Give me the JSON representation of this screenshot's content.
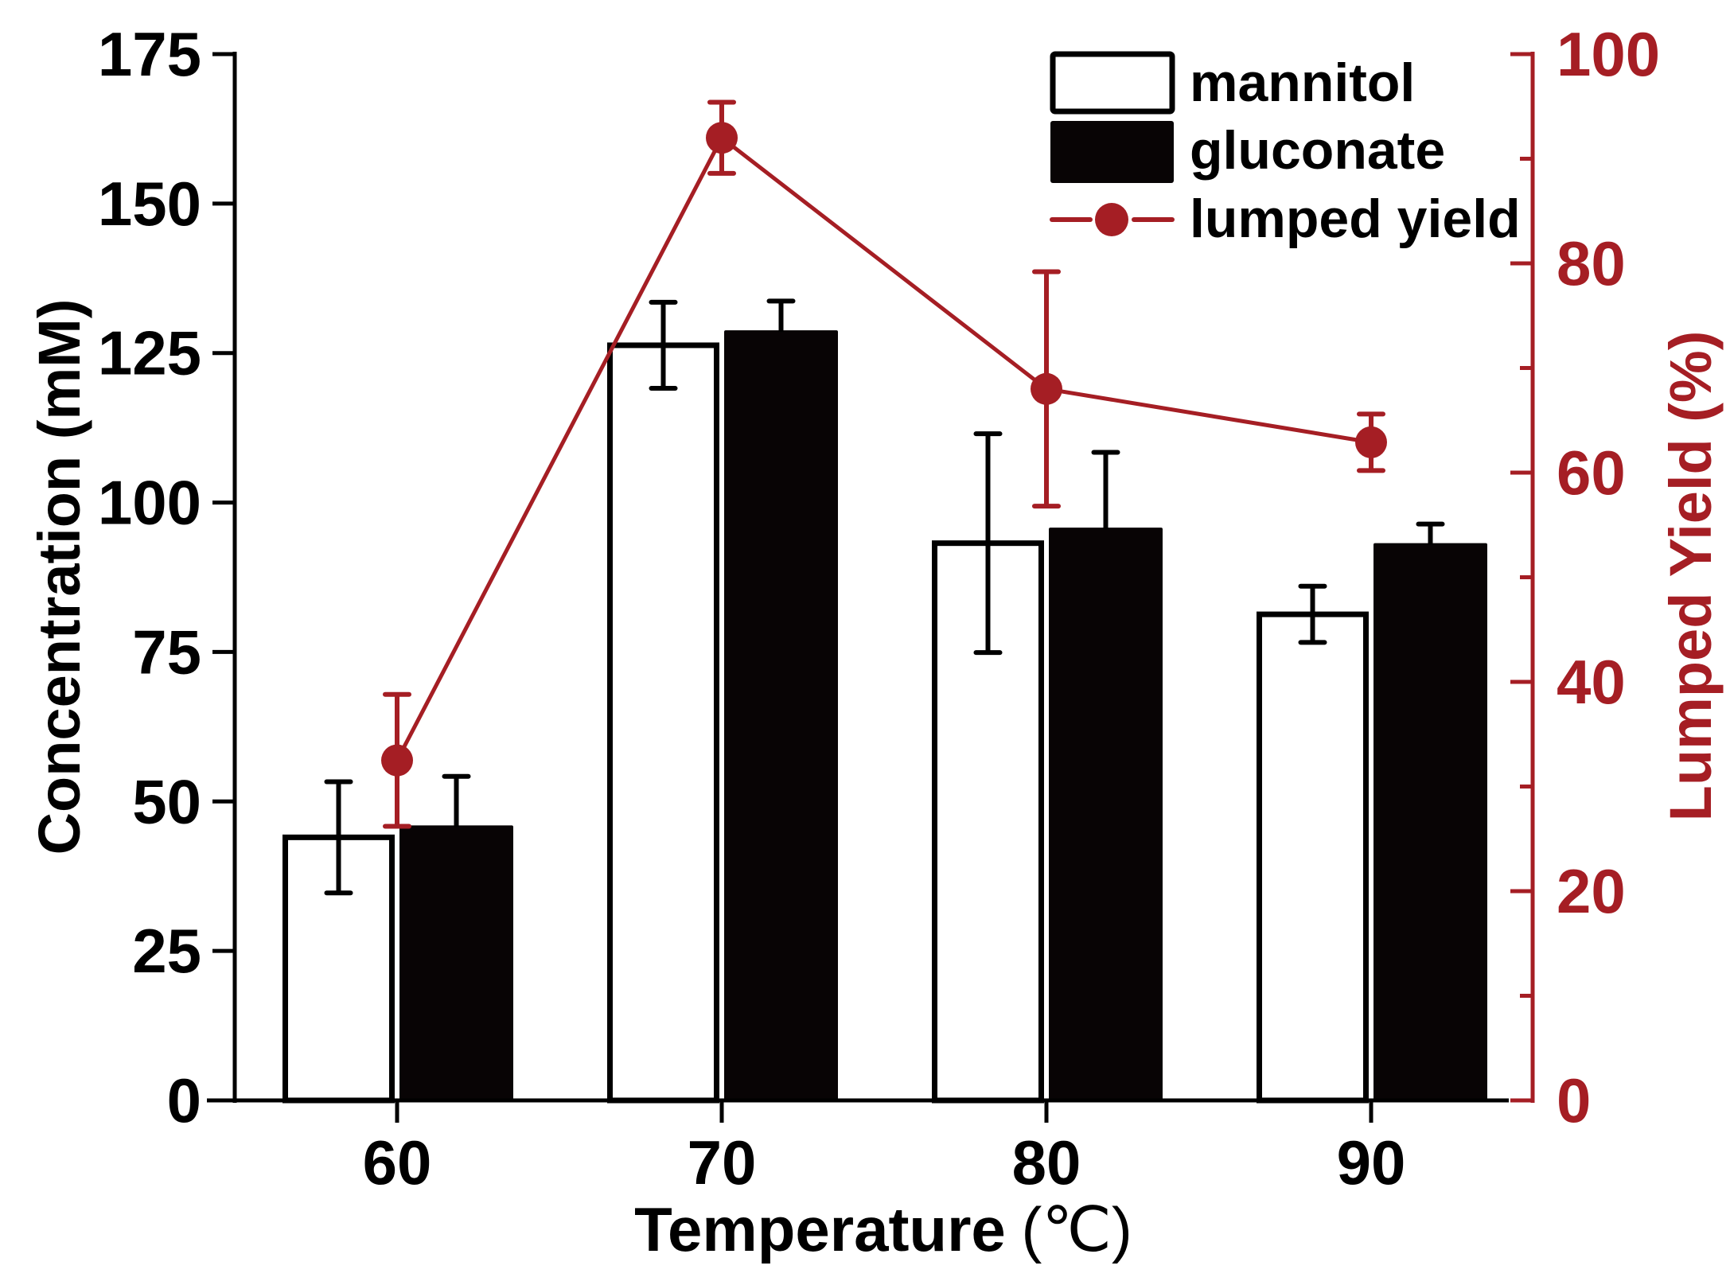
{
  "chart_data": {
    "type": "bar",
    "title": "",
    "xlabel": "Temperature",
    "xlabel_unit": "(℃)",
    "ylabel": "Concentration (mM)",
    "y2label": "Lumped Yield (%)",
    "categories": [
      "60",
      "70",
      "80",
      "90"
    ],
    "ylim": [
      0,
      175
    ],
    "yticks": [
      "0",
      "25",
      "50",
      "75",
      "100",
      "125",
      "150",
      "175"
    ],
    "y2lim": [
      0,
      100
    ],
    "y2ticks": [
      "0",
      "20",
      "40",
      "60",
      "80",
      "100"
    ],
    "y2_minor_step": 10,
    "grid": false,
    "legend_position": "top-right",
    "series": [
      {
        "name": "mannitol",
        "kind": "bar",
        "axis": "left",
        "style": "open",
        "values": [
          44.0,
          126.3,
          93.2,
          81.3
        ],
        "errors": [
          9.3,
          7.2,
          18.3,
          4.7
        ]
      },
      {
        "name": "gluconate",
        "kind": "bar",
        "axis": "left",
        "style": "filled",
        "values": [
          46.0,
          128.8,
          95.8,
          93.2
        ],
        "errors": [
          8.2,
          4.9,
          12.6,
          3.2
        ]
      },
      {
        "name": "lumped yield",
        "kind": "line",
        "axis": "right",
        "marker": "circle",
        "values": [
          32.5,
          92.0,
          68.0,
          62.9
        ],
        "errors": [
          6.3,
          3.4,
          11.2,
          2.7
        ]
      }
    ],
    "colors": {
      "bar_edge": "#000000",
      "bar_fill_open": "#ffffff",
      "bar_fill_filled": "#080405",
      "yield": "#A51E24",
      "axis_left": "#000000",
      "axis_right": "#A51E24"
    }
  }
}
